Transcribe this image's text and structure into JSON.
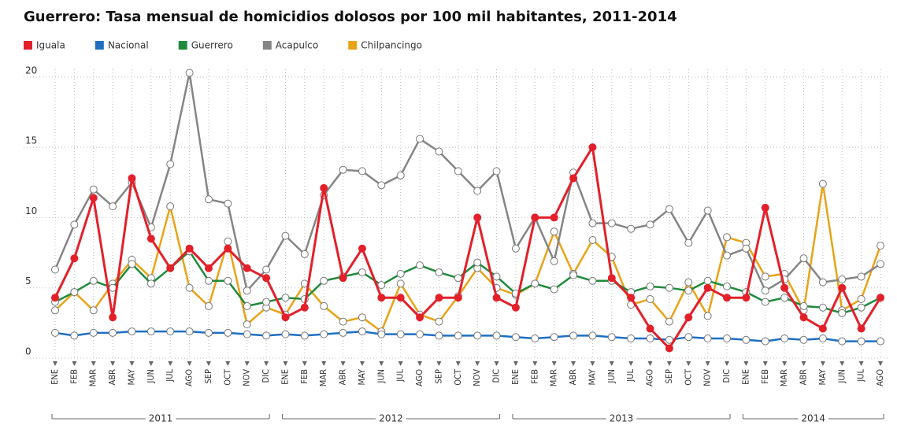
{
  "chart_data": {
    "type": "line",
    "title": "Guerrero: Tasa mensual de homicidios dolosos por 100 mil habitantes, 2011-2014",
    "categories": [
      "ENE",
      "FEB",
      "MAR",
      "ABR",
      "MAY",
      "JUN",
      "JUL",
      "AGO",
      "SEP",
      "OCT",
      "NOV",
      "DIC",
      "ENE",
      "FEB",
      "MAR",
      "ABR",
      "MAY",
      "JUN",
      "JUL",
      "AGO",
      "SEP",
      "OCT",
      "NOV",
      "DIC",
      "ENE",
      "FEB",
      "MAR",
      "ABR",
      "MAY",
      "JUN",
      "JUL",
      "AGO",
      "SEP",
      "OCT",
      "NOV",
      "DIC",
      "ENE",
      "FEB",
      "MAR",
      "ABR",
      "MAY",
      "JUN",
      "JUL",
      "AGO"
    ],
    "category_groups": [
      {
        "label": "2011",
        "count": 12
      },
      {
        "label": "2012",
        "count": 12
      },
      {
        "label": "2013",
        "count": 12
      },
      {
        "label": "2014",
        "count": 8
      }
    ],
    "series": [
      {
        "name": "Iguala",
        "color": "#e3202a",
        "marker": "filled",
        "values": [
          4.3,
          7.1,
          11.4,
          2.9,
          12.8,
          8.5,
          6.4,
          7.8,
          6.4,
          7.8,
          6.4,
          5.7,
          2.9,
          3.6,
          12.1,
          5.7,
          7.8,
          4.3,
          4.3,
          2.9,
          4.3,
          4.3,
          10.0,
          4.3,
          3.6,
          10.0,
          10.0,
          12.8,
          15.0,
          5.7,
          4.3,
          2.1,
          0.7,
          2.9,
          5.0,
          4.3,
          4.3,
          10.7,
          5.0,
          2.9,
          2.1,
          5.0,
          2.1,
          4.3
        ]
      },
      {
        "name": "Nacional",
        "color": "#1f6fc1",
        "marker": "open",
        "values": [
          1.8,
          1.6,
          1.8,
          1.8,
          1.9,
          1.9,
          1.9,
          1.9,
          1.8,
          1.8,
          1.7,
          1.6,
          1.7,
          1.6,
          1.7,
          1.8,
          1.9,
          1.7,
          1.7,
          1.7,
          1.6,
          1.6,
          1.6,
          1.6,
          1.5,
          1.4,
          1.5,
          1.6,
          1.6,
          1.5,
          1.4,
          1.4,
          1.3,
          1.5,
          1.4,
          1.4,
          1.3,
          1.2,
          1.4,
          1.3,
          1.4,
          1.2,
          1.2,
          1.2
        ]
      },
      {
        "name": "Guerrero",
        "color": "#1f8a3c",
        "marker": "open",
        "values": [
          4.0,
          4.7,
          5.5,
          5.0,
          6.7,
          5.3,
          6.4,
          7.6,
          5.5,
          5.5,
          3.7,
          4.0,
          4.3,
          4.2,
          5.5,
          5.8,
          6.1,
          5.2,
          6.0,
          6.6,
          6.1,
          5.7,
          6.8,
          5.8,
          4.6,
          5.3,
          4.9,
          5.9,
          5.5,
          5.5,
          4.7,
          5.1,
          5.0,
          4.8,
          5.5,
          5.1,
          4.7,
          4.0,
          4.3,
          3.7,
          3.6,
          3.2,
          3.6,
          4.3
        ]
      },
      {
        "name": "Acapulco",
        "color": "#858585",
        "marker": "open",
        "values": [
          6.3,
          9.5,
          12.0,
          10.8,
          12.5,
          9.3,
          13.8,
          20.3,
          11.3,
          11.0,
          4.8,
          6.3,
          8.7,
          7.4,
          11.6,
          13.4,
          13.3,
          12.3,
          13.0,
          15.6,
          14.7,
          13.3,
          11.9,
          13.3,
          7.8,
          10.0,
          6.9,
          13.2,
          9.6,
          9.6,
          9.2,
          9.5,
          10.6,
          8.2,
          10.5,
          7.3,
          7.8,
          4.8,
          5.6,
          7.1,
          5.4,
          5.6,
          5.8,
          6.7
        ]
      },
      {
        "name": "Chilpancingo",
        "color": "#e8a317",
        "marker": "open",
        "values": [
          3.4,
          4.7,
          3.4,
          5.3,
          7.0,
          5.7,
          10.8,
          5.0,
          3.7,
          8.3,
          2.4,
          3.6,
          3.1,
          5.3,
          3.7,
          2.6,
          2.9,
          1.9,
          5.3,
          3.1,
          2.6,
          4.4,
          6.4,
          5.0,
          4.5,
          5.3,
          9.0,
          6.0,
          8.4,
          7.2,
          3.8,
          4.2,
          2.6,
          5.4,
          3.0,
          8.6,
          8.2,
          5.8,
          6.0,
          3.4,
          12.4,
          3.4,
          4.2,
          8.0
        ]
      }
    ],
    "ylim": [
      0,
      21
    ],
    "yticks": [
      0,
      5,
      10,
      15,
      20
    ],
    "grid": true,
    "legend": "top-left"
  }
}
